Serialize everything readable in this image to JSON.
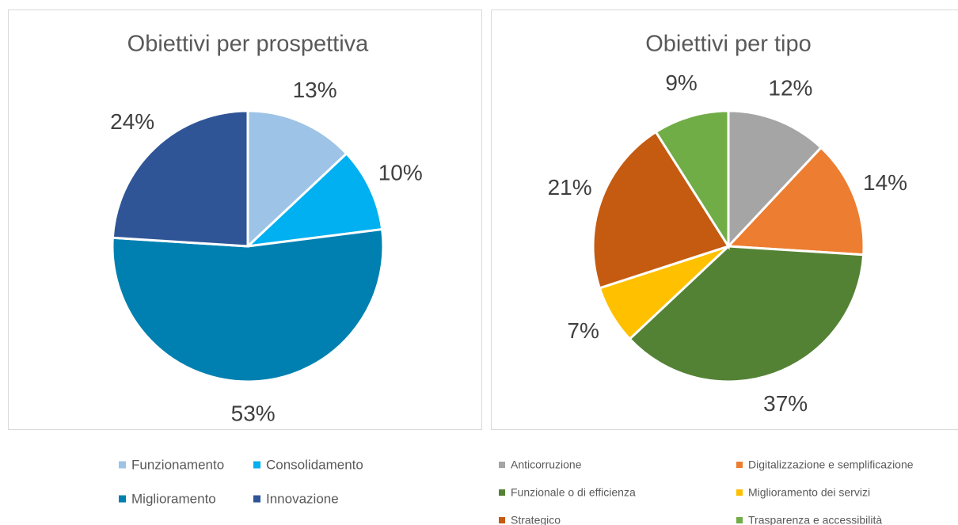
{
  "chart_data": [
    {
      "type": "pie",
      "title": "Obiettivi per prospettiva",
      "categories": [
        "Funzionamento",
        "Consolidamento",
        "Miglioramento",
        "Innovazione"
      ],
      "values": [
        13,
        10,
        53,
        24
      ],
      "value_labels": [
        "13%",
        "10%",
        "53%",
        "24%"
      ],
      "colors": [
        "#9dc3e6",
        "#00b0f0",
        "#0080b0",
        "#2f5597"
      ]
    },
    {
      "type": "pie",
      "title": "Obiettivi per tipo",
      "categories": [
        "Anticorruzione",
        "Digitalizzazione e semplificazione",
        "Funzionale o di efficienza",
        "Miglioramento dei servizi",
        "Strategico",
        "Trasparenza e accessibilità"
      ],
      "values": [
        12,
        14,
        37,
        7,
        21,
        9
      ],
      "value_labels": [
        "12%",
        "14%",
        "37%",
        "7%",
        "21%",
        "9%"
      ],
      "colors": [
        "#a5a5a5",
        "#ed7d31",
        "#548235",
        "#ffc000",
        "#c55a11",
        "#70ad47"
      ]
    }
  ]
}
